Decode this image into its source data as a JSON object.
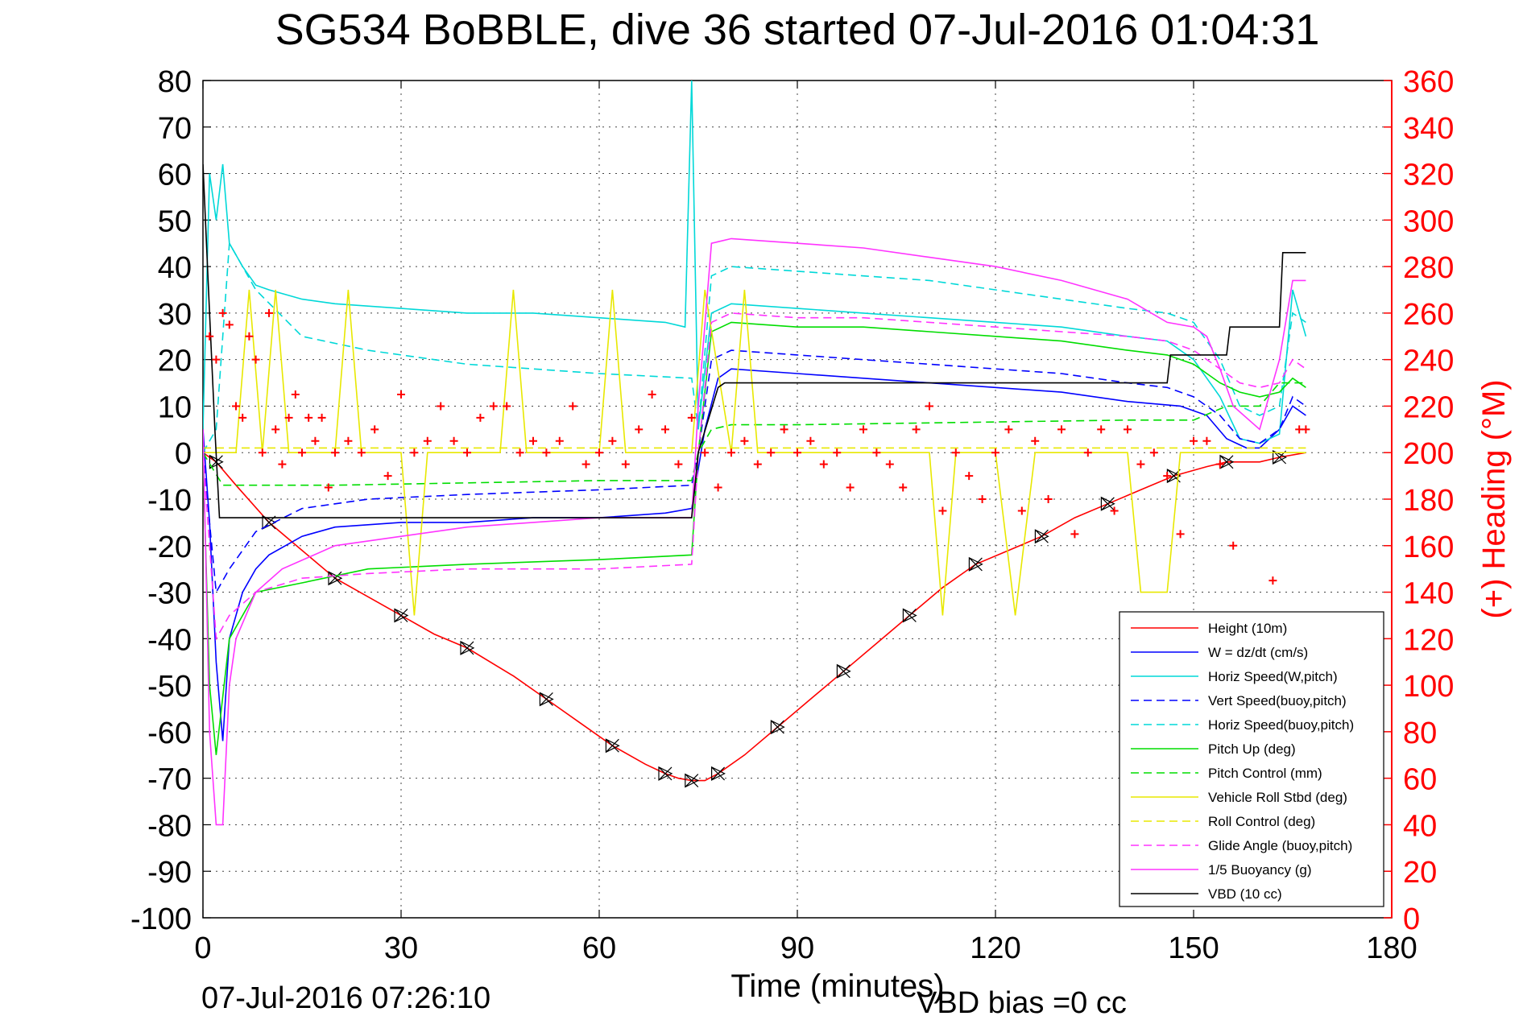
{
  "chart_data": {
    "type": "line",
    "title": "SG534 BoBBLE, dive 36 started 07-Jul-2016 01:04:31",
    "xlabel": "Time (minutes)",
    "ylabel_right": "(+) Heading (°M)",
    "footer_left": "07-Jul-2016 07:26:10",
    "footer_right": "VBD bias =0 cc",
    "xlim": [
      0,
      180
    ],
    "ylim_left": [
      -100,
      80
    ],
    "ylim_right": [
      0,
      360
    ],
    "x_ticks": [
      "0",
      "30",
      "60",
      "90",
      "120",
      "150",
      "180"
    ],
    "y_left_ticks": [
      "80",
      "70",
      "60",
      "50",
      "40",
      "30",
      "20",
      "10",
      "0",
      "-10",
      "-20",
      "-30",
      "-40",
      "-50",
      "-60",
      "-70",
      "-80",
      "-90",
      "-100"
    ],
    "y_right_ticks": [
      "360",
      "340",
      "320",
      "300",
      "280",
      "260",
      "240",
      "220",
      "200",
      "180",
      "160",
      "140",
      "120",
      "100",
      "80",
      "60",
      "40",
      "20",
      "0"
    ],
    "grid": true,
    "legend_position": "bottom-right",
    "right_axis_color": "#ff0000",
    "series": [
      {
        "name": "Height (10m)",
        "color": "#ff0000",
        "style": "solid",
        "axis": "left",
        "x": [
          0,
          2,
          5,
          10,
          15,
          20,
          25,
          30,
          35,
          40,
          47,
          52,
          57,
          62,
          67,
          70,
          72,
          74,
          76,
          78,
          82,
          87,
          92,
          97,
          102,
          107,
          112,
          117,
          122,
          127,
          132,
          137,
          142,
          147,
          152,
          155,
          160,
          163,
          167
        ],
        "y": [
          0,
          -2,
          -7,
          -15,
          -21,
          -27,
          -31,
          -35,
          -39,
          -42,
          -48,
          -53,
          -58,
          -63,
          -67,
          -69,
          -70,
          -70.5,
          -70.5,
          -69,
          -65,
          -59,
          -53,
          -47,
          -41,
          -35,
          -29,
          -24,
          -21,
          -18,
          -14,
          -11,
          -8,
          -5,
          -3,
          -2,
          -2,
          -1,
          0
        ]
      },
      {
        "name": "W = dz/dt (cm/s)",
        "color": "#0000ff",
        "style": "solid",
        "axis": "left",
        "x": [
          0,
          1,
          2,
          3,
          4,
          6,
          8,
          10,
          15,
          20,
          30,
          40,
          50,
          60,
          70,
          74,
          76,
          78,
          80,
          90,
          100,
          110,
          120,
          130,
          140,
          148,
          152,
          155,
          158,
          160,
          163,
          165,
          167
        ],
        "y": [
          5,
          -15,
          -45,
          -62,
          -40,
          -30,
          -25,
          -22,
          -18,
          -16,
          -15,
          -15,
          -14,
          -14,
          -13,
          -12,
          5,
          16,
          18,
          17,
          16,
          15,
          14,
          13,
          11,
          10,
          8,
          3,
          1,
          1,
          5,
          10,
          8
        ]
      },
      {
        "name": "Horiz Speed(W,pitch)",
        "color": "#00d8d8",
        "style": "solid",
        "axis": "left",
        "x": [
          0,
          1,
          2,
          3,
          4,
          6,
          8,
          10,
          15,
          20,
          30,
          40,
          50,
          60,
          70,
          73,
          74,
          75,
          77,
          80,
          90,
          100,
          110,
          120,
          130,
          140,
          146,
          150,
          154,
          157,
          160,
          163,
          165,
          167
        ],
        "y": [
          5,
          60,
          50,
          62,
          45,
          40,
          36,
          35,
          33,
          32,
          31,
          30,
          30,
          29,
          28,
          27,
          80,
          5,
          30,
          32,
          31,
          30,
          29,
          28,
          27,
          25,
          24,
          20,
          12,
          3,
          2,
          4,
          35,
          25
        ]
      },
      {
        "name": "Vert Speed(buoy,pitch)",
        "color": "#0000ff",
        "style": "dashed",
        "axis": "left",
        "x": [
          0,
          2,
          4,
          8,
          15,
          25,
          40,
          60,
          74,
          75,
          77,
          80,
          90,
          100,
          110,
          120,
          130,
          140,
          146,
          150,
          154,
          157,
          160,
          163,
          165,
          167
        ],
        "y": [
          0,
          -30,
          -25,
          -17,
          -12,
          -10,
          -9,
          -8,
          -7,
          0,
          20,
          22,
          21,
          20,
          19,
          18,
          17,
          15,
          14,
          12,
          8,
          3,
          2,
          5,
          12,
          10
        ]
      },
      {
        "name": "Horiz Speed(buoy,pitch)",
        "color": "#00d8d8",
        "style": "dashed",
        "axis": "left",
        "x": [
          0,
          2,
          4,
          8,
          15,
          25,
          40,
          60,
          74,
          75,
          77,
          80,
          90,
          100,
          110,
          120,
          130,
          140,
          146,
          150,
          154,
          157,
          160,
          163,
          165,
          167
        ],
        "y": [
          0,
          5,
          45,
          35,
          25,
          22,
          19,
          17,
          16,
          5,
          38,
          40,
          39,
          38,
          37,
          35,
          33,
          31,
          30,
          28,
          20,
          10,
          8,
          10,
          30,
          28
        ]
      },
      {
        "name": "Pitch Up (deg)",
        "color": "#00dd00",
        "style": "solid",
        "axis": "left",
        "x": [
          0,
          1,
          2,
          4,
          8,
          15,
          25,
          40,
          60,
          74,
          75,
          77,
          80,
          90,
          100,
          110,
          120,
          130,
          140,
          146,
          150,
          154,
          157,
          160,
          163,
          165,
          167
        ],
        "y": [
          0,
          -50,
          -65,
          -40,
          -30,
          -28,
          -25,
          -24,
          -23,
          -22,
          0,
          26,
          28,
          27,
          27,
          26,
          25,
          24,
          22,
          21,
          19,
          15,
          13,
          12,
          13,
          16,
          14
        ]
      },
      {
        "name": "Pitch Control (mm)",
        "color": "#00dd00",
        "style": "dashed",
        "axis": "left",
        "x": [
          0,
          3,
          3.1,
          20,
          60,
          74,
          75,
          77,
          80,
          90,
          140,
          150,
          155,
          160,
          163,
          167
        ],
        "y": [
          0,
          -7,
          -7,
          -7,
          -6,
          -6,
          0,
          5,
          6,
          6,
          7,
          7,
          10,
          10,
          15,
          15
        ]
      },
      {
        "name": "Vehicle Roll Stbd (deg)",
        "color": "#e8e800",
        "style": "solid",
        "axis": "left",
        "x": [
          0,
          5,
          7,
          9,
          11,
          13,
          15,
          20,
          22,
          24,
          30,
          32,
          34,
          45,
          47,
          49,
          60,
          62,
          64,
          74,
          76,
          80,
          82,
          84,
          100,
          110,
          112,
          114,
          120,
          123,
          126,
          140,
          142,
          146,
          148,
          150,
          155,
          160,
          165,
          167
        ],
        "y": [
          0,
          0,
          35,
          0,
          35,
          0,
          0,
          0,
          35,
          0,
          0,
          -35,
          0,
          0,
          35,
          0,
          0,
          35,
          0,
          0,
          35,
          0,
          35,
          0,
          0,
          0,
          -35,
          0,
          0,
          -35,
          0,
          0,
          -30,
          -30,
          0,
          0,
          0,
          0,
          0,
          0
        ]
      },
      {
        "name": "Roll Control (deg)",
        "color": "#e8e800",
        "style": "dashed",
        "axis": "left",
        "x": [
          0,
          167
        ],
        "y": [
          1,
          1
        ]
      },
      {
        "name": "Glide Angle (buoy,pitch)",
        "color": "#ff33ff",
        "style": "dashed",
        "axis": "left",
        "x": [
          0,
          2,
          4,
          8,
          15,
          25,
          40,
          60,
          74,
          75,
          77,
          80,
          90,
          100,
          110,
          120,
          130,
          140,
          146,
          150,
          154,
          157,
          160,
          163,
          165,
          167
        ],
        "y": [
          0,
          -40,
          -35,
          -30,
          -27,
          -26,
          -25,
          -25,
          -24,
          0,
          28,
          30,
          29,
          29,
          28,
          27,
          26,
          25,
          24,
          22,
          18,
          15,
          14,
          15,
          20,
          18
        ]
      },
      {
        "name": "1/5 Buoyancy (g)",
        "color": "#ff33ff",
        "style": "solid",
        "axis": "left",
        "x": [
          0,
          1,
          2,
          3,
          4,
          5,
          8,
          12,
          20,
          30,
          40,
          50,
          60,
          70,
          74,
          75,
          77,
          80,
          90,
          100,
          110,
          120,
          130,
          140,
          146,
          150,
          152,
          154,
          156,
          160,
          163,
          165,
          167
        ],
        "y": [
          5,
          -60,
          -80,
          -80,
          -50,
          -40,
          -30,
          -25,
          -20,
          -18,
          -16,
          -15,
          -14,
          -14,
          -14,
          10,
          45,
          46,
          45,
          44,
          42,
          40,
          37,
          33,
          28,
          27,
          25,
          18,
          10,
          5,
          20,
          37,
          37
        ]
      },
      {
        "name": "VBD (10 cc)",
        "color": "#000000",
        "style": "solid",
        "axis": "left",
        "x": [
          0,
          1,
          1.8,
          2.5,
          3,
          74,
          75,
          78,
          79,
          146,
          146.5,
          155,
          155.5,
          163,
          163.5,
          167
        ],
        "y": [
          62,
          30,
          5,
          -14,
          -14,
          -14,
          0,
          14,
          15,
          15,
          21,
          21,
          27,
          27,
          43,
          43
        ]
      },
      {
        "name": "Heading",
        "color": "#ff0000",
        "style": "markers",
        "axis": "right",
        "x": [
          1,
          2,
          3,
          4,
          5,
          6,
          7,
          8,
          9,
          10,
          11,
          12,
          13,
          14,
          15,
          16,
          17,
          18,
          19,
          20,
          22,
          24,
          26,
          28,
          30,
          32,
          34,
          36,
          38,
          40,
          42,
          44,
          46,
          48,
          50,
          52,
          54,
          56,
          58,
          60,
          62,
          64,
          66,
          68,
          70,
          72,
          74,
          76,
          78,
          80,
          82,
          84,
          86,
          88,
          90,
          92,
          94,
          96,
          98,
          100,
          102,
          104,
          106,
          108,
          110,
          112,
          114,
          116,
          118,
          120,
          122,
          124,
          126,
          128,
          130,
          132,
          134,
          136,
          138,
          140,
          142,
          144,
          146,
          148,
          150,
          152,
          154,
          156,
          158,
          160,
          162,
          164,
          166,
          167
        ],
        "y": [
          250,
          240,
          260,
          255,
          220,
          215,
          250,
          240,
          200,
          260,
          210,
          195,
          215,
          225,
          200,
          215,
          205,
          215,
          185,
          200,
          205,
          200,
          210,
          190,
          225,
          200,
          205,
          220,
          205,
          200,
          215,
          220,
          220,
          200,
          205,
          200,
          205,
          220,
          195,
          200,
          205,
          195,
          210,
          225,
          210,
          195,
          215,
          200,
          185,
          200,
          205,
          195,
          200,
          210,
          200,
          205,
          195,
          200,
          185,
          210,
          200,
          195,
          185,
          210,
          220,
          175,
          200,
          190,
          180,
          200,
          210,
          175,
          205,
          180,
          210,
          165,
          200,
          210,
          175,
          210,
          195,
          200,
          190,
          165,
          205,
          205,
          195,
          160,
          125,
          120,
          145,
          130,
          210,
          210
        ]
      }
    ]
  }
}
